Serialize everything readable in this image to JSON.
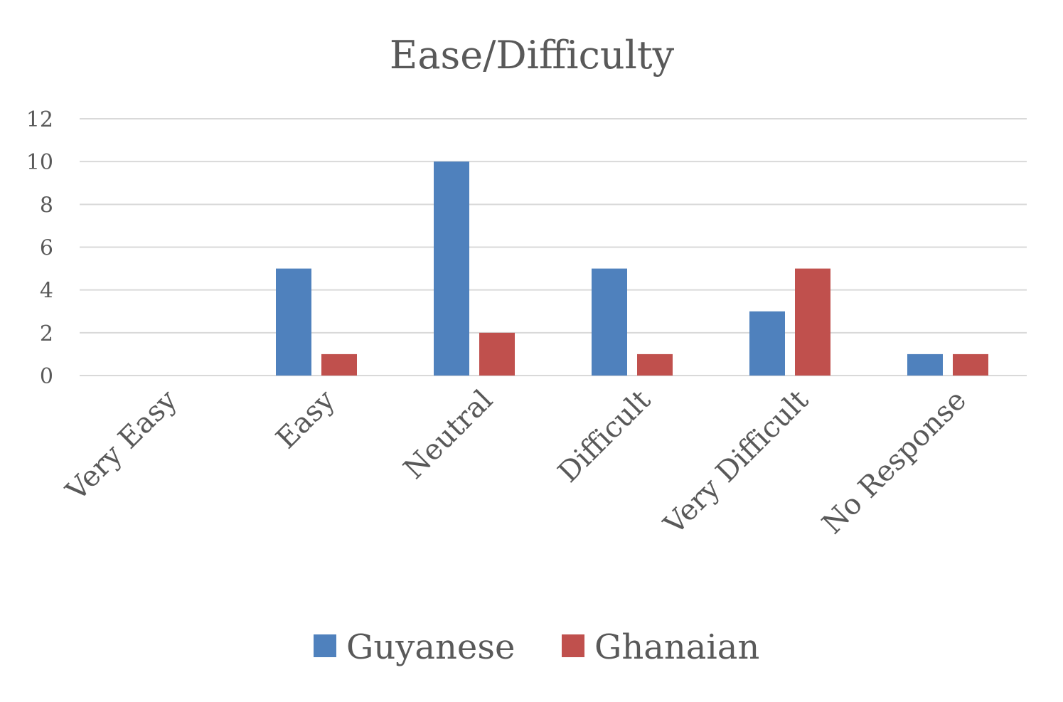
{
  "chart_data": {
    "type": "bar",
    "title": "Ease/Difficulty",
    "xlabel": "",
    "ylabel": "",
    "categories": [
      "Very Easy",
      "Easy",
      "Neutral",
      "Difficult",
      "Very Difficult",
      "No Response"
    ],
    "series": [
      {
        "name": "Guyanese",
        "values": [
          0,
          5,
          10,
          5,
          3,
          1
        ],
        "color": "#4F81BD"
      },
      {
        "name": "Ghanaian",
        "values": [
          0,
          1,
          2,
          1,
          5,
          1
        ],
        "color": "#C0504D"
      }
    ],
    "ylim": [
      0,
      12
    ],
    "yticks": [
      "0",
      "2",
      "4",
      "6",
      "8",
      "10",
      "12"
    ],
    "grid": true,
    "legend_position": "bottom"
  }
}
